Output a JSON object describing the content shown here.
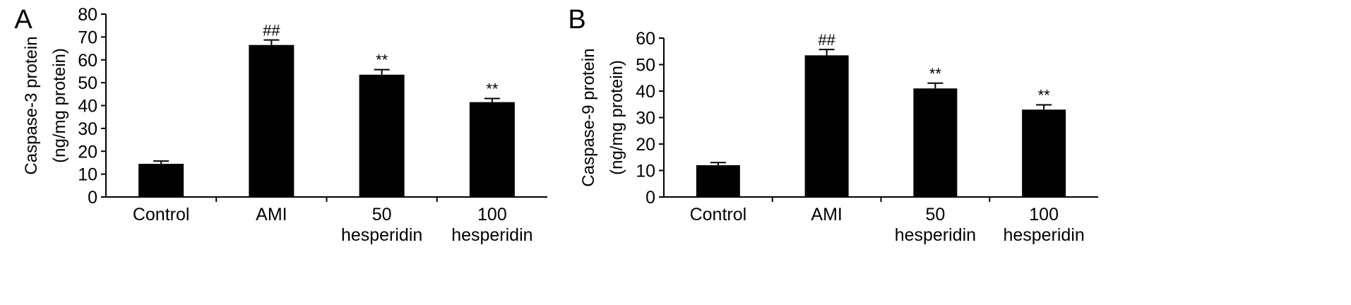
{
  "chart_data": [
    {
      "type": "bar",
      "panel_label": "A",
      "ylabel_line1": "Caspase-3 protein",
      "ylabel_line2": "(ng/mg protein)",
      "categories": [
        {
          "line1": "Control",
          "line2": ""
        },
        {
          "line1": "AMI",
          "line2": ""
        },
        {
          "line1": "50",
          "line2": "hesperidin"
        },
        {
          "line1": "100",
          "line2": "hesperidin"
        }
      ],
      "values": [
        14.5,
        66.5,
        53.5,
        41.5
      ],
      "errors": [
        1.2,
        2.2,
        2.2,
        1.6
      ],
      "annotations": [
        "",
        "##",
        "**",
        "**"
      ],
      "ylim": [
        0,
        80
      ],
      "yticks": [
        0,
        10,
        20,
        30,
        40,
        50,
        60,
        70,
        80
      ],
      "color": "#000000"
    },
    {
      "type": "bar",
      "panel_label": "B",
      "ylabel_line1": "Caspase-9 protein",
      "ylabel_line2": "(ng/mg protein)",
      "categories": [
        {
          "line1": "Control",
          "line2": ""
        },
        {
          "line1": "AMI",
          "line2": ""
        },
        {
          "line1": "50",
          "line2": "hesperidin"
        },
        {
          "line1": "100",
          "line2": "hesperidin"
        }
      ],
      "values": [
        12,
        53.5,
        41,
        33
      ],
      "errors": [
        1.0,
        2.2,
        2.0,
        1.8
      ],
      "annotations": [
        "",
        "##",
        "**",
        "**"
      ],
      "ylim": [
        0,
        60
      ],
      "yticks": [
        0,
        10,
        20,
        30,
        40,
        50,
        60
      ],
      "color": "#000000"
    }
  ]
}
